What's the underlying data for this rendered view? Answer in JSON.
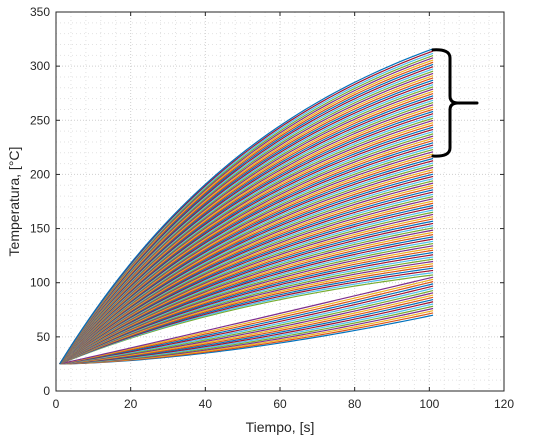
{
  "chart_data": {
    "type": "line",
    "title": "",
    "xlabel": "Tiempo,  [s]",
    "ylabel": "Temperatura,  [°C]",
    "xlim": [
      0,
      120
    ],
    "ylim": [
      0,
      350
    ],
    "x_ticks": [
      "0",
      "20",
      "40",
      "60",
      "80",
      "100",
      "120"
    ],
    "y_ticks": [
      "0",
      "50",
      "100",
      "150",
      "200",
      "250",
      "300",
      "350"
    ],
    "grid": "minor dotted",
    "legend": "none",
    "annotation": "curly brace spanning the top group of curves",
    "series_count": 120,
    "series_x": [
      1,
      101
    ],
    "series_start_value": 25,
    "series_end_values_range": [
      70,
      316
    ],
    "brace_span_y": [
      217,
      315
    ],
    "colors": [
      "#0072BD",
      "#D95319",
      "#EDB120",
      "#7E2F8E",
      "#77AC30",
      "#4DBEEE",
      "#A2142F"
    ]
  }
}
